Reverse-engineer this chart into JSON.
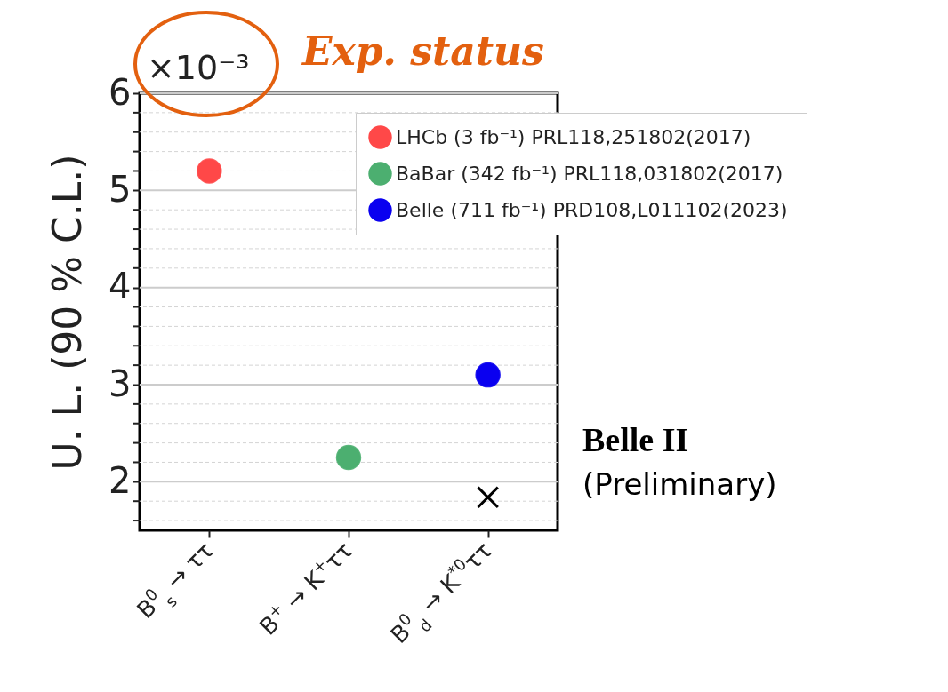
{
  "chart_data": {
    "type": "scatter",
    "ylabel": "U. L. (90 % C.L.)",
    "categories": [
      "B$^{0}$$_{s}$ → ττ",
      "B$^{+}$ → K$^{+}$ττ",
      "B$^{0}$$_{d}$ → K$^{*0}$ττ"
    ],
    "series": [
      {
        "name": "LHCb (3 fb⁻¹)  PRL118,251802(2017)",
        "color": "#ff4848",
        "values": [
          5.2,
          null,
          null
        ]
      },
      {
        "name": "BaBar (342 fb⁻¹)  PRL118,031802(2017)",
        "color": "#4caf70",
        "values": [
          null,
          2.25,
          null
        ]
      },
      {
        "name": "Belle (711 fb⁻¹)  PRD108,L011102(2023)",
        "color": "#0a00f0",
        "values": [
          null,
          null,
          3.1
        ]
      },
      {
        "color": "#000000",
        "marker": "cross",
        "values": [
          null,
          null,
          1.84
        ]
      }
    ],
    "ylim": [
      1.5,
      6
    ],
    "yticks": [
      {
        "value": 1.6,
        "label": null
      },
      {
        "value": 1.8,
        "label": null
      },
      2,
      {
        "value": 2.2,
        "label": null
      },
      {
        "value": 2.4,
        "label": null
      },
      {
        "value": 2.6,
        "label": null
      },
      {
        "value": 2.8,
        "label": null
      },
      3,
      {
        "value": 3.2,
        "label": null
      },
      {
        "value": 3.4,
        "label": null
      },
      {
        "value": 3.6,
        "label": null
      },
      {
        "value": 3.8,
        "label": null
      },
      4,
      {
        "value": 4.2,
        "label": null
      },
      {
        "value": 4.4,
        "label": null
      },
      {
        "value": 4.6,
        "label": null
      },
      {
        "value": 4.8,
        "label": null
      },
      5,
      {
        "value": 5.2,
        "label": null
      },
      {
        "value": 5.4,
        "label": null
      },
      {
        "value": 5.6,
        "label": null
      },
      {
        "value": 5.8,
        "label": null
      },
      6
    ],
    "grid": "y",
    "legend": "top right",
    "marker": "circle",
    "annotations": [
      "×10⁻³",
      "Exp. status",
      "Belle II",
      "(Preliminary)"
    ]
  }
}
